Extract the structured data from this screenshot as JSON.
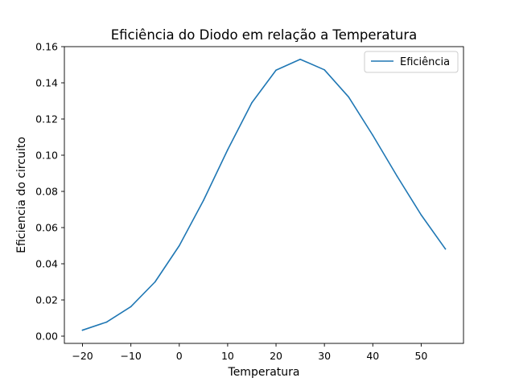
{
  "chart_data": {
    "type": "line",
    "title": "Eficiência do Diodo em relação a Temperatura",
    "xlabel": "Temperatura",
    "ylabel": "Eficiencia do circuito",
    "xlim": [
      -23.75,
      58.75
    ],
    "ylim": [
      -0.004,
      0.16
    ],
    "x_ticks": [
      -20,
      -10,
      0,
      10,
      20,
      30,
      40,
      50
    ],
    "x_tick_labels": [
      "−20",
      "−10",
      "0",
      "10",
      "20",
      "30",
      "40",
      "50"
    ],
    "y_ticks": [
      0.0,
      0.02,
      0.04,
      0.06,
      0.08,
      0.1,
      0.12,
      0.14,
      0.16
    ],
    "y_tick_labels": [
      "0.00",
      "0.02",
      "0.04",
      "0.06",
      "0.08",
      "0.10",
      "0.12",
      "0.14",
      "0.16"
    ],
    "grid": false,
    "legend_position": "top-right",
    "series": [
      {
        "name": "Eficiência",
        "color": "#1f77b4",
        "x": [
          -20,
          -15,
          -10,
          -5,
          0,
          5,
          10,
          15,
          20,
          25,
          30,
          35,
          40,
          45,
          50,
          55
        ],
        "y": [
          0.0033,
          0.0078,
          0.0163,
          0.03,
          0.05,
          0.075,
          0.103,
          0.129,
          0.147,
          0.153,
          0.1472,
          0.1322,
          0.111,
          0.0885,
          0.067,
          0.0482
        ]
      }
    ]
  }
}
